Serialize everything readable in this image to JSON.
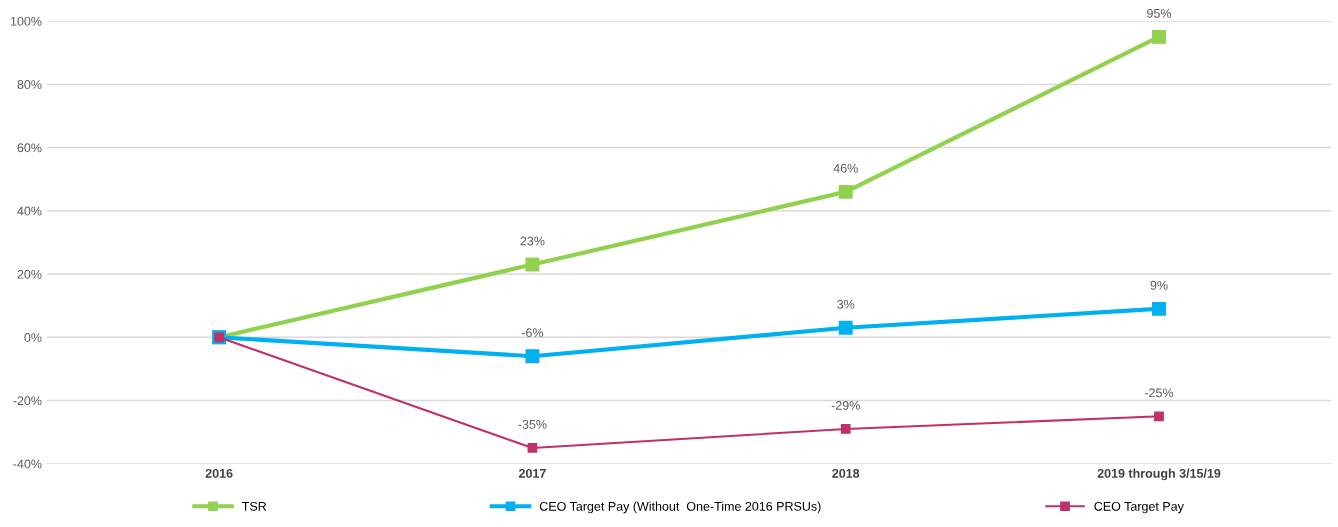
{
  "chart_data": {
    "type": "line",
    "categories": [
      "2016",
      "2017",
      "2018",
      "2019 through 3/15/19"
    ],
    "series": [
      {
        "name": "TSR",
        "color": "#92d050",
        "values": [
          0,
          23,
          46,
          95
        ],
        "value_labels": [
          null,
          "23%",
          "46%",
          "95%"
        ]
      },
      {
        "name": "CEO Target Pay (Without  One-Time 2016 PRSUs)",
        "color": "#00b0f0",
        "values": [
          0,
          -6,
          3,
          9
        ],
        "value_labels": [
          null,
          "-6%",
          "3%",
          "9%"
        ]
      },
      {
        "name": "CEO Target Pay",
        "color": "#c0306c",
        "values": [
          0,
          -35,
          -29,
          -25
        ],
        "value_labels": [
          null,
          "-35%",
          "-29%",
          "-25%"
        ]
      }
    ],
    "ylim": [
      -40,
      100
    ],
    "yticks": [
      {
        "value": -40,
        "label": "-40%"
      },
      {
        "value": -20,
        "label": "-20%"
      },
      {
        "value": 0,
        "label": "0%"
      },
      {
        "value": 20,
        "label": "20%"
      },
      {
        "value": 40,
        "label": "40%"
      },
      {
        "value": 60,
        "label": "60%"
      },
      {
        "value": 80,
        "label": "80%"
      },
      {
        "value": 100,
        "label": "100%"
      }
    ],
    "grid": "y",
    "legend": "bottom",
    "marker": "square",
    "line_style": "solid"
  }
}
